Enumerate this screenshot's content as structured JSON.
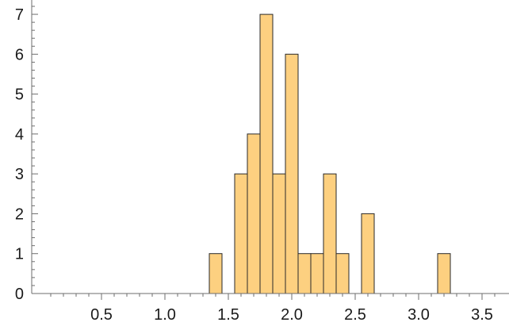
{
  "chart_data": {
    "type": "bar",
    "subtype": "histogram",
    "title": "",
    "xlabel": "",
    "ylabel": "",
    "bin_width": 0.1,
    "bins": [
      {
        "x0": 1.35,
        "x1": 1.45,
        "count": 1
      },
      {
        "x0": 1.55,
        "x1": 1.65,
        "count": 3
      },
      {
        "x0": 1.65,
        "x1": 1.75,
        "count": 4
      },
      {
        "x0": 1.75,
        "x1": 1.85,
        "count": 7
      },
      {
        "x0": 1.85,
        "x1": 1.95,
        "count": 3
      },
      {
        "x0": 1.95,
        "x1": 2.05,
        "count": 6
      },
      {
        "x0": 2.05,
        "x1": 2.15,
        "count": 1
      },
      {
        "x0": 2.15,
        "x1": 2.25,
        "count": 1
      },
      {
        "x0": 2.25,
        "x1": 2.35,
        "count": 3
      },
      {
        "x0": 2.35,
        "x1": 2.45,
        "count": 1
      },
      {
        "x0": 2.55,
        "x1": 2.65,
        "count": 2
      },
      {
        "x0": 3.15,
        "x1": 3.25,
        "count": 1
      }
    ],
    "xlim": [
      -0.05,
      3.65
    ],
    "ylim": [
      0,
      7.2
    ],
    "x_ticks": [
      "0.5",
      "1.0",
      "1.5",
      "2.0",
      "2.5",
      "3.0",
      "3.5"
    ],
    "y_ticks": [
      "0",
      "1",
      "2",
      "3",
      "4",
      "5",
      "6",
      "7"
    ],
    "grid": false,
    "colors": {
      "bar_fill": "#fdd080",
      "bar_stroke": "#2a2a2a",
      "axis": "#6e6e6e"
    }
  }
}
